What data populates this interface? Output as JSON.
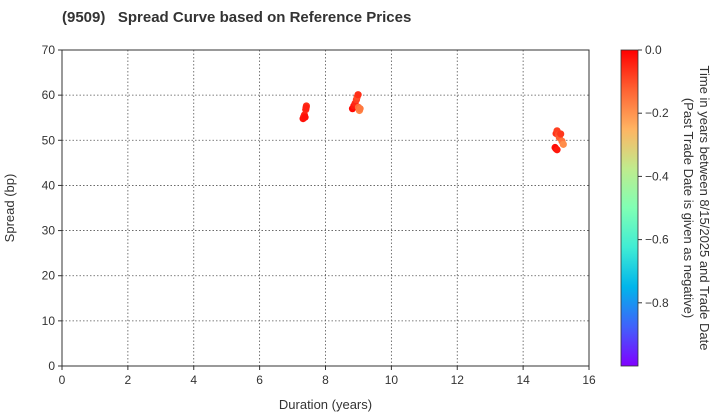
{
  "chart_data": {
    "type": "scatter",
    "title": "(9509)   Spread Curve based on Reference Prices",
    "xlabel": "Duration (years)",
    "ylabel": "Spread (bp)",
    "xlim": [
      0,
      16
    ],
    "ylim": [
      0,
      70
    ],
    "xticks": [
      "0",
      "2",
      "4",
      "6",
      "8",
      "10",
      "12",
      "14",
      "16"
    ],
    "yticks": [
      "0",
      "10",
      "20",
      "30",
      "40",
      "50",
      "60",
      "70"
    ],
    "grid": true,
    "grid_style": "dotted",
    "colorbar": {
      "label_line1": "Time in years between 8/15/2025 and Trade Date",
      "label_line2": "(Past Trade Date is given as negative)",
      "range": [
        -1.0,
        0.0
      ],
      "ticks": [
        "0.0",
        "−0.2",
        "−0.4",
        "−0.6",
        "−0.8"
      ],
      "tick_values": [
        0.0,
        -0.2,
        -0.4,
        -0.6,
        -0.8
      ],
      "colormap": "rainbow"
    },
    "points": [
      {
        "x": 7.32,
        "y": 54.8,
        "t": -0.02
      },
      {
        "x": 7.34,
        "y": 55.2,
        "t": -0.03
      },
      {
        "x": 7.36,
        "y": 55.6,
        "t": -0.04
      },
      {
        "x": 7.38,
        "y": 55.1,
        "t": -0.02
      },
      {
        "x": 7.4,
        "y": 56.8,
        "t": -0.05
      },
      {
        "x": 7.42,
        "y": 57.6,
        "t": -0.06
      },
      {
        "x": 7.41,
        "y": 57.2,
        "t": -0.04
      },
      {
        "x": 8.82,
        "y": 57.0,
        "t": -0.01
      },
      {
        "x": 8.86,
        "y": 57.6,
        "t": -0.03
      },
      {
        "x": 8.9,
        "y": 58.2,
        "t": -0.05
      },
      {
        "x": 8.94,
        "y": 59.0,
        "t": -0.08
      },
      {
        "x": 8.96,
        "y": 59.6,
        "t": -0.1
      },
      {
        "x": 8.99,
        "y": 60.1,
        "t": -0.06
      },
      {
        "x": 9.0,
        "y": 57.3,
        "t": -0.14
      },
      {
        "x": 9.03,
        "y": 56.6,
        "t": -0.18
      },
      {
        "x": 9.05,
        "y": 57.0,
        "t": -0.16
      },
      {
        "x": 14.97,
        "y": 48.4,
        "t": -0.02
      },
      {
        "x": 15.0,
        "y": 48.1,
        "t": -0.01
      },
      {
        "x": 15.03,
        "y": 47.9,
        "t": -0.03
      },
      {
        "x": 15.0,
        "y": 51.5,
        "t": -0.06
      },
      {
        "x": 15.03,
        "y": 52.1,
        "t": -0.08
      },
      {
        "x": 15.07,
        "y": 51.2,
        "t": -0.1
      },
      {
        "x": 15.1,
        "y": 50.6,
        "t": -0.12
      },
      {
        "x": 15.14,
        "y": 51.4,
        "t": -0.07
      },
      {
        "x": 15.18,
        "y": 49.8,
        "t": -0.15
      },
      {
        "x": 15.22,
        "y": 49.1,
        "t": -0.19
      }
    ]
  }
}
